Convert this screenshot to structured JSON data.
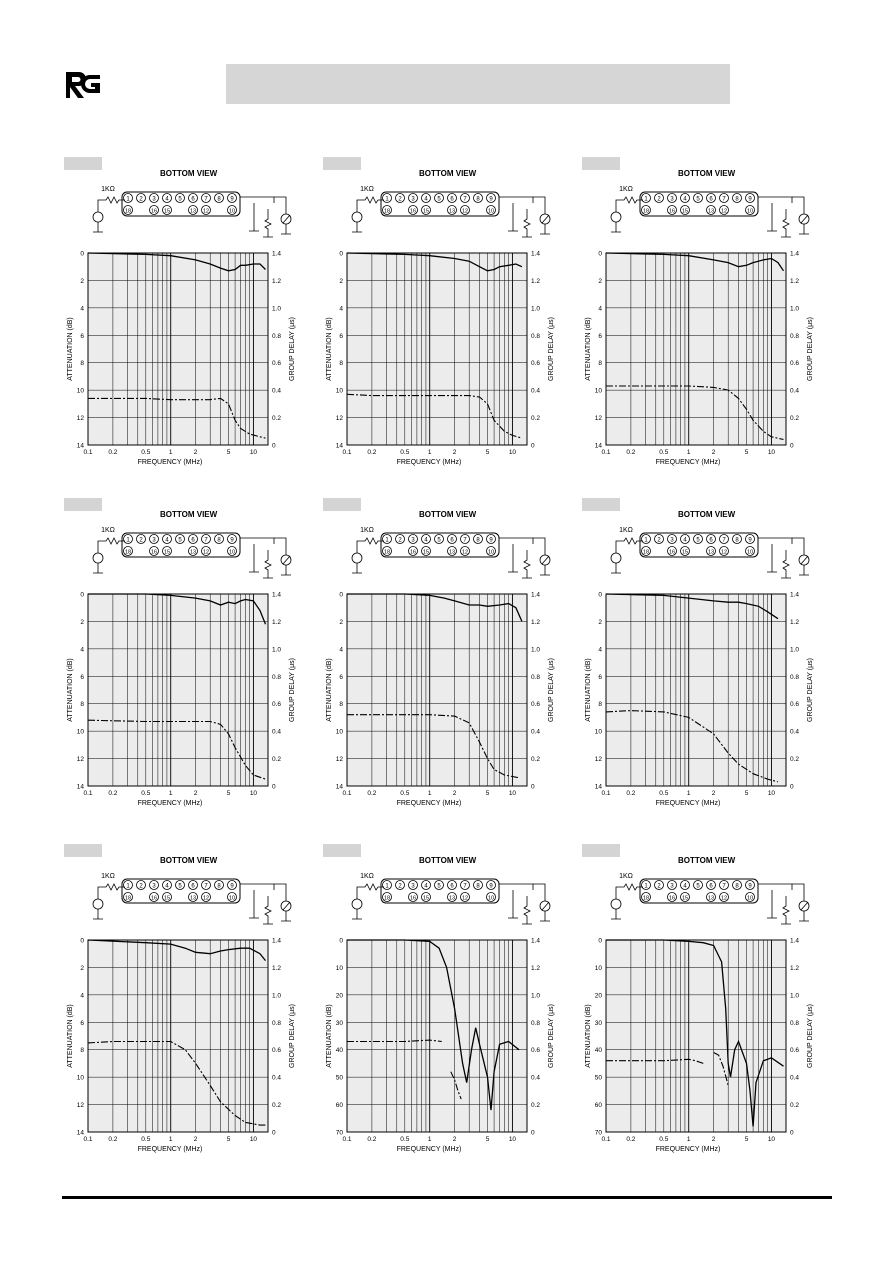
{
  "logo_text": "RG",
  "colors": {
    "plot_bg": "#ececec",
    "grid": "#000000",
    "tag_fill": "#d4d4d4",
    "title_bar": "#d6d6d6"
  },
  "common": {
    "bottom_view": "BOTTOM VIEW",
    "resistor": "1KΩ",
    "left_axis": "ATTENUATION (dB)",
    "right_axis": "GROUP DELAY (μs)",
    "x_axis": "FREQUENCY (MHz)",
    "x_ticks": [
      "0.1",
      "0.2",
      "0.5",
      "1",
      "2",
      "5",
      "10"
    ],
    "y_ticks": [
      "0",
      "2",
      "4",
      "6",
      "8",
      "10",
      "12",
      "14"
    ],
    "y_ticks_70": [
      "0",
      "10",
      "20",
      "30",
      "40",
      "50",
      "60",
      "70"
    ],
    "gd_ticks": [
      "1.4",
      "1.2",
      "1.0",
      "0.8",
      "0.6",
      "0.4",
      "0.2",
      "0"
    ]
  },
  "chart_data": [
    {
      "type": "line",
      "ylim": [
        0,
        14
      ],
      "x_range_mhz": [
        0.1,
        15
      ],
      "series": [
        {
          "values": [
            [
              0.1,
              0.0
            ],
            [
              0.5,
              0.1
            ],
            [
              1,
              0.2
            ],
            [
              2,
              0.5
            ],
            [
              3,
              0.8
            ],
            [
              4,
              1.1
            ],
            [
              5,
              1.3
            ],
            [
              6,
              1.2
            ],
            [
              7,
              0.9
            ],
            [
              8,
              0.9
            ],
            [
              10,
              0.8
            ],
            [
              12,
              0.8
            ],
            [
              14,
              1.2
            ]
          ]
        },
        {
          "values": [
            [
              0.1,
              0.34
            ],
            [
              0.5,
              0.34
            ],
            [
              1,
              0.33
            ],
            [
              2,
              0.33
            ],
            [
              3,
              0.33
            ],
            [
              4,
              0.34
            ],
            [
              5,
              0.3
            ],
            [
              6,
              0.18
            ],
            [
              7,
              0.12
            ],
            [
              9,
              0.08
            ],
            [
              12,
              0.06
            ],
            [
              14,
              0.05
            ]
          ]
        }
      ]
    },
    {
      "type": "line",
      "ylim": [
        0,
        14
      ],
      "x_range_mhz": [
        0.1,
        15
      ],
      "series": [
        {
          "values": [
            [
              0.1,
              0.0
            ],
            [
              0.5,
              0.1
            ],
            [
              1,
              0.2
            ],
            [
              2,
              0.4
            ],
            [
              3,
              0.6
            ],
            [
              4,
              1.0
            ],
            [
              5,
              1.3
            ],
            [
              6,
              1.2
            ],
            [
              7,
              1.0
            ],
            [
              9,
              0.9
            ],
            [
              11,
              0.8
            ],
            [
              13,
              1.0
            ]
          ]
        },
        {
          "values": [
            [
              0.1,
              0.37
            ],
            [
              0.2,
              0.36
            ],
            [
              0.5,
              0.36
            ],
            [
              1,
              0.36
            ],
            [
              2,
              0.36
            ],
            [
              3,
              0.36
            ],
            [
              4,
              0.35
            ],
            [
              5,
              0.3
            ],
            [
              6,
              0.18
            ],
            [
              8,
              0.1
            ],
            [
              10,
              0.07
            ],
            [
              13,
              0.05
            ]
          ]
        }
      ]
    },
    {
      "type": "line",
      "ylim": [
        0,
        14
      ],
      "x_range_mhz": [
        0.1,
        15
      ],
      "series": [
        {
          "values": [
            [
              0.1,
              0.0
            ],
            [
              0.5,
              0.1
            ],
            [
              1,
              0.2
            ],
            [
              2,
              0.5
            ],
            [
              3,
              0.7
            ],
            [
              4,
              1.0
            ],
            [
              5,
              0.9
            ],
            [
              6,
              0.7
            ],
            [
              8,
              0.5
            ],
            [
              10,
              0.4
            ],
            [
              12,
              0.7
            ],
            [
              14,
              1.3
            ]
          ]
        },
        {
          "values": [
            [
              0.1,
              0.43
            ],
            [
              0.5,
              0.43
            ],
            [
              1,
              0.43
            ],
            [
              2,
              0.42
            ],
            [
              3,
              0.4
            ],
            [
              4,
              0.34
            ],
            [
              5,
              0.26
            ],
            [
              6,
              0.18
            ],
            [
              8,
              0.1
            ],
            [
              10,
              0.06
            ],
            [
              14,
              0.04
            ]
          ]
        }
      ]
    },
    {
      "type": "line",
      "ylim": [
        0,
        14
      ],
      "x_range_mhz": [
        0.1,
        15
      ],
      "series": [
        {
          "values": [
            [
              0.1,
              0.0
            ],
            [
              0.5,
              0.0
            ],
            [
              1,
              0.1
            ],
            [
              2,
              0.3
            ],
            [
              3,
              0.5
            ],
            [
              4,
              0.8
            ],
            [
              5,
              0.6
            ],
            [
              6,
              0.7
            ],
            [
              7,
              0.5
            ],
            [
              8,
              0.4
            ],
            [
              10,
              0.5
            ],
            [
              12,
              1.2
            ],
            [
              14,
              2.2
            ]
          ]
        },
        {
          "values": [
            [
              0.1,
              0.48
            ],
            [
              0.5,
              0.47
            ],
            [
              1,
              0.47
            ],
            [
              2,
              0.47
            ],
            [
              3,
              0.47
            ],
            [
              4,
              0.45
            ],
            [
              5,
              0.38
            ],
            [
              6,
              0.28
            ],
            [
              8,
              0.15
            ],
            [
              10,
              0.08
            ],
            [
              14,
              0.05
            ]
          ]
        }
      ]
    },
    {
      "type": "line",
      "ylim": [
        0,
        14
      ],
      "x_range_mhz": [
        0.1,
        15
      ],
      "series": [
        {
          "values": [
            [
              0.1,
              0.0
            ],
            [
              0.5,
              0.0
            ],
            [
              1,
              0.1
            ],
            [
              1.5,
              0.3
            ],
            [
              2,
              0.5
            ],
            [
              3,
              0.8
            ],
            [
              4,
              0.8
            ],
            [
              5,
              0.9
            ],
            [
              7,
              0.8
            ],
            [
              9,
              0.7
            ],
            [
              11,
              1.0
            ],
            [
              13,
              2.0
            ]
          ]
        },
        {
          "values": [
            [
              0.1,
              0.52
            ],
            [
              0.5,
              0.52
            ],
            [
              1,
              0.52
            ],
            [
              2,
              0.51
            ],
            [
              3,
              0.46
            ],
            [
              4,
              0.32
            ],
            [
              5,
              0.2
            ],
            [
              6,
              0.12
            ],
            [
              8,
              0.08
            ],
            [
              12,
              0.06
            ]
          ]
        }
      ]
    },
    {
      "type": "line",
      "ylim": [
        0,
        14
      ],
      "x_range_mhz": [
        0.1,
        15
      ],
      "series": [
        {
          "values": [
            [
              0.1,
              0.0
            ],
            [
              0.5,
              0.1
            ],
            [
              1,
              0.3
            ],
            [
              2,
              0.5
            ],
            [
              3,
              0.6
            ],
            [
              4,
              0.6
            ],
            [
              5,
              0.7
            ],
            [
              7,
              0.9
            ],
            [
              9,
              1.3
            ],
            [
              12,
              1.8
            ]
          ]
        },
        {
          "values": [
            [
              0.1,
              0.54
            ],
            [
              0.2,
              0.55
            ],
            [
              0.5,
              0.54
            ],
            [
              1,
              0.5
            ],
            [
              2,
              0.38
            ],
            [
              3,
              0.24
            ],
            [
              4,
              0.16
            ],
            [
              6,
              0.09
            ],
            [
              9,
              0.05
            ],
            [
              12,
              0.03
            ]
          ]
        }
      ]
    },
    {
      "type": "line",
      "ylim": [
        0,
        14
      ],
      "x_range_mhz": [
        0.1,
        15
      ],
      "series": [
        {
          "values": [
            [
              0.1,
              0.0
            ],
            [
              0.5,
              0.2
            ],
            [
              1,
              0.3
            ],
            [
              1.5,
              0.6
            ],
            [
              2,
              0.9
            ],
            [
              3,
              1.0
            ],
            [
              4,
              0.8
            ],
            [
              5,
              0.7
            ],
            [
              7,
              0.6
            ],
            [
              9,
              0.6
            ],
            [
              12,
              1.0
            ],
            [
              14,
              1.5
            ]
          ]
        },
        {
          "values": [
            [
              0.1,
              0.65
            ],
            [
              0.2,
              0.66
            ],
            [
              0.5,
              0.66
            ],
            [
              1,
              0.66
            ],
            [
              1.5,
              0.6
            ],
            [
              2,
              0.5
            ],
            [
              3,
              0.34
            ],
            [
              4,
              0.22
            ],
            [
              6,
              0.12
            ],
            [
              8,
              0.07
            ],
            [
              12,
              0.05
            ],
            [
              14,
              0.05
            ]
          ]
        }
      ]
    },
    {
      "type": "line",
      "ylim": [
        0,
        70
      ],
      "x_range_mhz": [
        0.1,
        15
      ],
      "series": [
        {
          "values": [
            [
              0.1,
              0
            ],
            [
              0.5,
              0
            ],
            [
              1,
              0.5
            ],
            [
              1.3,
              3
            ],
            [
              1.6,
              10
            ],
            [
              2,
              25
            ],
            [
              2.5,
              45
            ],
            [
              2.8,
              52
            ],
            [
              3.2,
              40
            ],
            [
              3.6,
              32
            ],
            [
              4,
              38
            ],
            [
              5,
              50
            ],
            [
              5.5,
              62
            ],
            [
              6,
              48
            ],
            [
              7,
              38
            ],
            [
              9,
              37
            ],
            [
              12,
              40
            ]
          ]
        },
        {
          "values": [
            [
              0.1,
              0.66
            ],
            [
              0.5,
              0.66
            ],
            [
              1,
              0.67
            ],
            [
              1.4,
              0.66
            ]
          ]
        },
        {
          "values": [
            [
              1.8,
              0.44
            ],
            [
              2,
              0.38
            ],
            [
              2.2,
              0.3
            ],
            [
              2.4,
              0.24
            ]
          ]
        }
      ]
    },
    {
      "type": "line",
      "ylim": [
        0,
        70
      ],
      "x_range_mhz": [
        0.1,
        15
      ],
      "series": [
        {
          "values": [
            [
              0.1,
              0
            ],
            [
              0.5,
              0
            ],
            [
              1,
              0.5
            ],
            [
              1.5,
              1
            ],
            [
              2,
              2
            ],
            [
              2.5,
              8
            ],
            [
              2.8,
              25
            ],
            [
              3,
              45
            ],
            [
              3.2,
              50
            ],
            [
              3.6,
              40
            ],
            [
              4,
              37
            ],
            [
              5,
              45
            ],
            [
              5.5,
              55
            ],
            [
              6,
              68
            ],
            [
              6.5,
              52
            ],
            [
              8,
              44
            ],
            [
              10,
              43
            ],
            [
              14,
              46
            ]
          ]
        },
        {
          "values": [
            [
              0.1,
              0.52
            ],
            [
              0.5,
              0.52
            ],
            [
              1,
              0.53
            ],
            [
              1.2,
              0.52
            ],
            [
              1.5,
              0.5
            ]
          ]
        },
        {
          "values": [
            [
              2,
              0.58
            ],
            [
              2.3,
              0.56
            ],
            [
              2.6,
              0.48
            ],
            [
              3,
              0.34
            ]
          ]
        }
      ]
    }
  ]
}
